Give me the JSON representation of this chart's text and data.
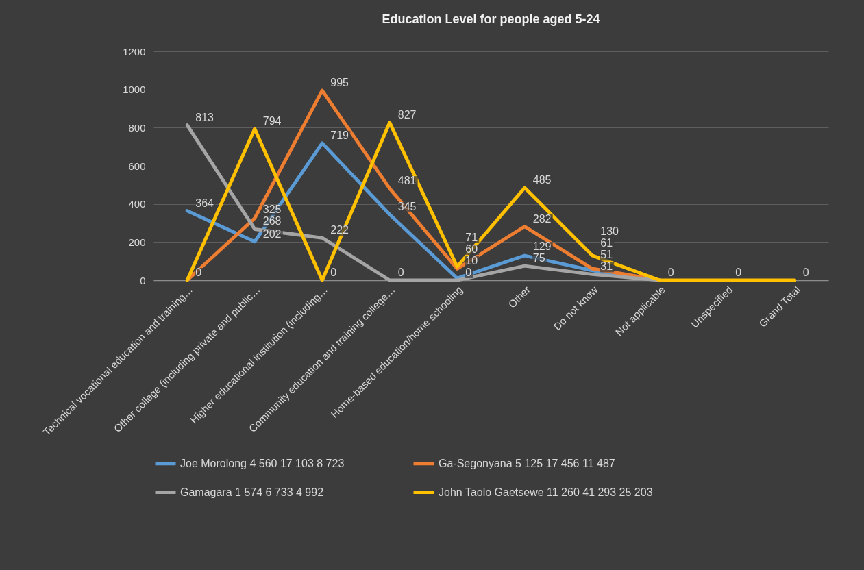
{
  "chart_data": {
    "type": "line",
    "title": "Education Level for people aged 5-24",
    "categories": [
      "Technical vocational education and training…",
      "Other college  (including private and public…",
      "Higher educational institution (including…",
      "Community education and training college…",
      "Home-based education/home schooling",
      "Other",
      "Do not know",
      "Not applicable",
      "Unspecified",
      "Grand Total"
    ],
    "series": [
      {
        "name": "Joe Morolong 4 560 17 103 8 723",
        "color": "#5b9bd5",
        "values": [
          364,
          202,
          719,
          345,
          10,
          129,
          51,
          0,
          null,
          null
        ],
        "value_labels": [
          "364",
          "202",
          "719",
          "345",
          "10",
          "129",
          "51",
          null,
          null,
          null
        ]
      },
      {
        "name": "Ga-Segonyana 5 125 17 456 11 487",
        "color": "#ed7d31",
        "values": [
          0,
          325,
          995,
          481,
          60,
          282,
          61,
          0,
          null,
          null
        ],
        "value_labels": [
          "0",
          "325",
          "995",
          "481",
          "60",
          "282",
          "61",
          null,
          null,
          null
        ]
      },
      {
        "name": "Gamagara 1 574 6 733 4 992",
        "color": "#a5a5a5",
        "values": [
          813,
          268,
          222,
          0,
          0,
          75,
          31,
          0,
          null,
          null
        ],
        "value_labels": [
          "813",
          "268",
          "222",
          "0",
          "0",
          "75",
          "31",
          null,
          null,
          null
        ]
      },
      {
        "name": "John Taolo Gaetsewe 11 260 41 293 25 203",
        "color": "#ffc000",
        "values": [
          0,
          794,
          0,
          827,
          71,
          485,
          130,
          0,
          0,
          0
        ],
        "value_labels": [
          null,
          "794",
          "0",
          "827",
          "71",
          "485",
          "130",
          "0",
          "0",
          "0"
        ]
      }
    ],
    "ylim": [
      0,
      1200
    ],
    "yticks": [
      0,
      200,
      400,
      600,
      800,
      1000,
      1200
    ],
    "grid": "y",
    "legend": "bottom",
    "marker": "none",
    "line_style": "solid"
  }
}
